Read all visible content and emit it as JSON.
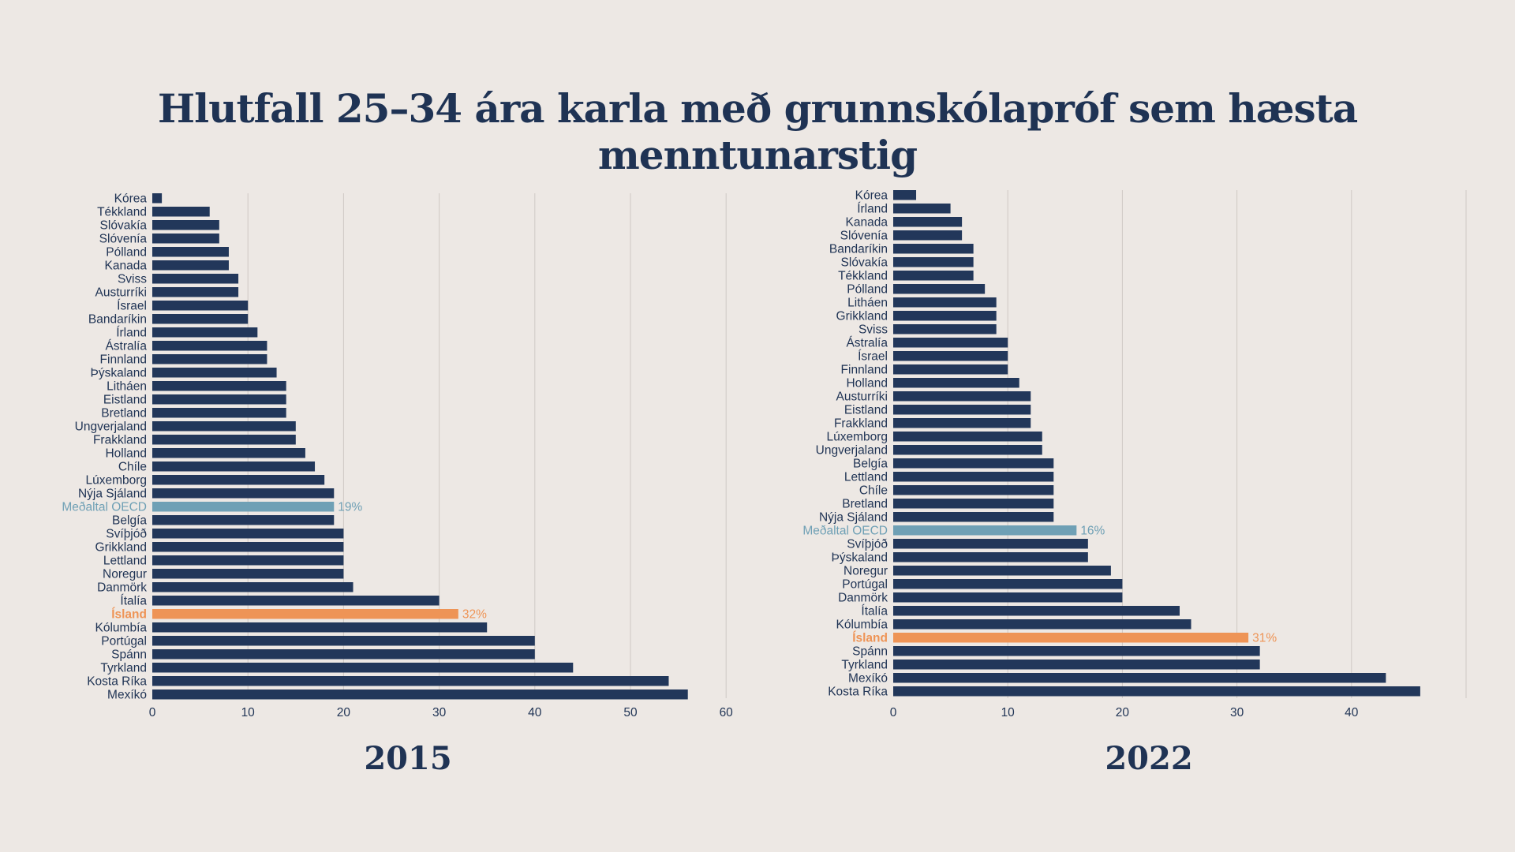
{
  "title": "Hlutfall 25–34 ára karla með grunnskólapróf sem hæsta menntunarstig",
  "colors": {
    "bar": "#22375a",
    "oecd": "#6fa0b5",
    "iceland": "#ee9456",
    "grid": "#cfc9c4",
    "text": "#1f3354",
    "background": "#ede8e4"
  },
  "chart_data": [
    {
      "type": "bar",
      "orientation": "horizontal",
      "title": "2015",
      "categories": [
        "Kórea",
        "Tékkland",
        "Slóvakía",
        "Slóvenía",
        "Pólland",
        "Kanada",
        "Sviss",
        "Austurríki",
        "Ísrael",
        "Bandaríkin",
        "Írland",
        "Ástralía",
        "Finnland",
        "Þýskaland",
        "Litháen",
        "Eistland",
        "Bretland",
        "Ungverjaland",
        "Frakkland",
        "Holland",
        "Chíle",
        "Lúxemborg",
        "Nýja Sjáland",
        "Meðaltal OECD",
        "Belgía",
        "Svíþjóð",
        "Grikkland",
        "Lettland",
        "Noregur",
        "Danmörk",
        "Ítalía",
        "Ísland",
        "Kólumbía",
        "Portúgal",
        "Spánn",
        "Tyrkland",
        "Kosta Ríka",
        "Mexíkó"
      ],
      "values": [
        1,
        6,
        7,
        7,
        8,
        8,
        9,
        9,
        10,
        10,
        11,
        12,
        12,
        13,
        14,
        14,
        14,
        15,
        15,
        16,
        17,
        18,
        19,
        19,
        19,
        20,
        20,
        20,
        20,
        21,
        30,
        32,
        35,
        40,
        40,
        44,
        54,
        56
      ],
      "highlights": {
        "Meðaltal OECD": "oecd",
        "Ísland": "iceland"
      },
      "value_labels": {
        "Meðaltal OECD": "19%",
        "Ísland": "32%"
      },
      "xlim": [
        0,
        60
      ],
      "xticks": [
        0,
        10,
        20,
        30,
        40,
        50,
        60
      ],
      "grid": true
    },
    {
      "type": "bar",
      "orientation": "horizontal",
      "title": "2022",
      "categories": [
        "Kórea",
        "Írland",
        "Kanada",
        "Slóvenía",
        "Bandaríkin",
        "Slóvakía",
        "Tékkland",
        "Pólland",
        "Litháen",
        "Grikkland",
        "Sviss",
        "Ástralía",
        "Ísrael",
        "Finnland",
        "Holland",
        "Austurríki",
        "Eistland",
        "Frakkland",
        "Lúxemborg",
        "Ungverjaland",
        "Belgía",
        "Lettland",
        "Chíle",
        "Bretland",
        "Nýja Sjáland",
        "Meðaltal OECD",
        "Svíþjóð",
        "Þýskaland",
        "Noregur",
        "Portúgal",
        "Danmörk",
        "Ítalía",
        "Kólumbía",
        "Ísland",
        "Spánn",
        "Tyrkland",
        "Mexíkó",
        "Kosta Ríka"
      ],
      "values": [
        2,
        5,
        6,
        6,
        7,
        7,
        7,
        8,
        9,
        9,
        9,
        10,
        10,
        10,
        11,
        12,
        12,
        12,
        13,
        13,
        14,
        14,
        14,
        14,
        14,
        16,
        17,
        17,
        19,
        20,
        20,
        25,
        26,
        31,
        32,
        32,
        43,
        46
      ],
      "highlights": {
        "Meðaltal OECD": "oecd",
        "Ísland": "iceland"
      },
      "value_labels": {
        "Meðaltal OECD": "16%",
        "Ísland": "31%"
      },
      "xlim": [
        0,
        50
      ],
      "xticks": [
        0,
        10,
        20,
        30,
        40
      ],
      "grid": true
    }
  ]
}
